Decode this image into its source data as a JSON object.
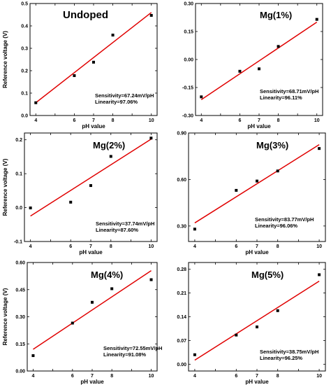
{
  "fit_color": "#e00000",
  "marker_color": "#000000",
  "chart_data": [
    {
      "type": "scatter",
      "title": "Undoped",
      "xlabel": "pH value",
      "ylabel": "Reference voltage (V)",
      "xlim": [
        3.7,
        10.3
      ],
      "ylim": [
        0.0,
        0.5
      ],
      "xticks": [
        4,
        5,
        6,
        7,
        8,
        9,
        10
      ],
      "xtick_labels": [
        "4",
        "",
        "6",
        "7",
        "8",
        "",
        "10"
      ],
      "yticks": [
        0.0,
        0.1,
        0.2,
        0.3,
        0.4,
        0.5
      ],
      "ytick_labels": [
        "0.0",
        "0.1",
        "0.2",
        "0.3",
        "0.4",
        "0.5"
      ],
      "x": [
        4,
        6,
        7,
        8,
        10
      ],
      "y": [
        0.057,
        0.178,
        0.238,
        0.359,
        0.447
      ],
      "fit": [
        [
          4,
          0.057
        ],
        [
          10,
          0.46
        ]
      ],
      "annotations": [
        "Sensitivity=67.24mV/pH",
        "Linearity=97.06%"
      ]
    },
    {
      "type": "scatter",
      "title": "Mg(1%)",
      "xlabel": "pH value",
      "ylabel": "",
      "xlim": [
        3.7,
        10.3
      ],
      "ylim": [
        -0.3,
        0.3
      ],
      "xticks": [
        4,
        5,
        6,
        7,
        8,
        9,
        10
      ],
      "xtick_labels": [
        "4",
        "",
        "6",
        "7",
        "8",
        "",
        "10"
      ],
      "yticks": [
        -0.3,
        -0.15,
        0.0,
        0.15,
        0.3
      ],
      "ytick_labels": [
        "-0.30",
        "-0.15",
        "0.00",
        "0.15",
        "0.30"
      ],
      "x": [
        4,
        6,
        7,
        8,
        10
      ],
      "y": [
        -0.2,
        -0.063,
        -0.05,
        0.07,
        0.215
      ],
      "fit": [
        [
          4,
          -0.215
        ],
        [
          10,
          0.2
        ]
      ],
      "annotations": [
        "Sensitivity=68.71mV/pH",
        "Linearity=96.11%"
      ]
    },
    {
      "type": "scatter",
      "title": "Mg(2%)",
      "xlabel": "pH value",
      "ylabel": "Reference voltage (V)",
      "xlim": [
        3.7,
        10.3
      ],
      "ylim": [
        -0.1,
        0.22
      ],
      "xticks": [
        4,
        5,
        6,
        7,
        8,
        9,
        10
      ],
      "xtick_labels": [
        "4",
        "",
        "6",
        "7",
        "8",
        "",
        "10"
      ],
      "yticks": [
        -0.1,
        0.0,
        0.1,
        0.2
      ],
      "ytick_labels": [
        "-0.1",
        "0.0",
        "0.1",
        "0.2"
      ],
      "x": [
        4,
        6,
        7,
        8,
        10
      ],
      "y": [
        -0.001,
        0.016,
        0.065,
        0.151,
        0.205
      ],
      "fit": [
        [
          4,
          -0.025
        ],
        [
          10,
          0.202
        ]
      ],
      "annotations": [
        "Sensitivity=37.74mV/pH",
        "Linearity=87.60%"
      ]
    },
    {
      "type": "scatter",
      "title": "Mg(3%)",
      "xlabel": "pH value",
      "ylabel": "",
      "xlim": [
        3.7,
        10.3
      ],
      "ylim": [
        0.2,
        0.9
      ],
      "xticks": [
        4,
        5,
        6,
        7,
        8,
        9,
        10
      ],
      "xtick_labels": [
        "4",
        "",
        "6",
        "7",
        "8",
        "",
        "10"
      ],
      "yticks": [
        0.3,
        0.6,
        0.9
      ],
      "ytick_labels": [
        "0.30",
        "0.60",
        "0.90"
      ],
      "x": [
        4,
        6,
        7,
        8,
        10
      ],
      "y": [
        0.28,
        0.53,
        0.59,
        0.655,
        0.8
      ],
      "fit": [
        [
          4,
          0.32
        ],
        [
          10,
          0.825
        ]
      ],
      "annotations": [
        "Sensitivity=83.77mV/pH",
        "Linearity=96.06%"
      ]
    },
    {
      "type": "scatter",
      "title": "Mg(4%)",
      "xlabel": "pH value",
      "ylabel": "Reference voltage (V)",
      "xlim": [
        3.7,
        10.3
      ],
      "ylim": [
        0.0,
        0.6
      ],
      "xticks": [
        4,
        5,
        6,
        7,
        8,
        9,
        10
      ],
      "xtick_labels": [
        "4",
        "",
        "6",
        "7",
        "8",
        "",
        "10"
      ],
      "yticks": [
        0.0,
        0.15,
        0.3,
        0.45,
        0.6
      ],
      "ytick_labels": [
        "0.00",
        "0.15",
        "0.30",
        "0.45",
        "0.60"
      ],
      "x": [
        4,
        6,
        7,
        8,
        10
      ],
      "y": [
        0.085,
        0.265,
        0.38,
        0.455,
        0.505
      ],
      "fit": [
        [
          4,
          0.12
        ],
        [
          10,
          0.555
        ]
      ],
      "annotations": [
        "Sensitivity=72.55mV/pH",
        "Linearity=91.08%"
      ]
    },
    {
      "type": "scatter",
      "title": "Mg(5%)",
      "xlabel": "pH value",
      "ylabel": "",
      "xlim": [
        3.7,
        10.3
      ],
      "ylim": [
        -0.02,
        0.3
      ],
      "xticks": [
        4,
        5,
        6,
        7,
        8,
        9,
        10
      ],
      "xtick_labels": [
        "4",
        "",
        "6",
        "7",
        "8",
        "",
        "10"
      ],
      "yticks": [
        0.0,
        0.07,
        0.14,
        0.21,
        0.28
      ],
      "ytick_labels": [
        "0.00",
        "0.07",
        "0.14",
        "0.21",
        "0.28"
      ],
      "x": [
        4,
        6,
        7,
        8,
        10
      ],
      "y": [
        0.028,
        0.086,
        0.11,
        0.158,
        0.264
      ],
      "fit": [
        [
          4,
          0.012
        ],
        [
          10,
          0.245
        ]
      ],
      "annotations": [
        "Sensitivity=38.75mV/pH",
        "Linearity=96.25%"
      ]
    }
  ]
}
